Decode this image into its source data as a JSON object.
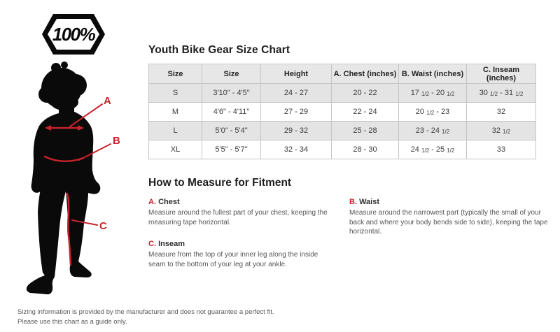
{
  "logo": {
    "text": "100%"
  },
  "chart": {
    "title": "Youth Bike Gear Size Chart",
    "columns": [
      "Size",
      "Size",
      "Height",
      "A. Chest (inches)",
      "B. Waist (inches)",
      "C. Inseam (inches)"
    ],
    "rows": [
      [
        "S",
        "3'10\" - 4'5\"",
        "24 - 27",
        "20 - 22",
        "17 1/2 - 20 1/2",
        "30 1/2 - 31 1/2"
      ],
      [
        "M",
        "4'6\" - 4'11\"",
        "27 - 29",
        "22 - 24",
        "20 1/2 - 23",
        "32"
      ],
      [
        "L",
        "5'0\" - 5'4\"",
        "29 - 32",
        "25 - 28",
        "23 - 24 1/2",
        "32 1/2"
      ],
      [
        "XL",
        "5'5\" - 5'7\"",
        "32 - 34",
        "28 - 30",
        "24 1/2 - 25 1/2",
        "33"
      ]
    ]
  },
  "measure": {
    "title": "How to Measure for Fitment",
    "items": [
      {
        "letter": "A.",
        "name": "Chest",
        "text": "Measure around the fullest part of your chest, keeping the measuring tape horizontal."
      },
      {
        "letter": "B.",
        "name": "Waist",
        "text": "Measure around the narrowest part (typically the small of your back and where your body bends side to side), keeping the tape horizontal."
      },
      {
        "letter": "C.",
        "name": "Inseam",
        "text": "Measure from the top of your inner leg along the inside seam to the bottom of your leg at your ankle."
      }
    ]
  },
  "diagram": {
    "labels": [
      "A",
      "B",
      "C"
    ]
  },
  "footer": {
    "line1": "Sizing information is provided by the manufacturer and does not guarantee a perfect fit.",
    "line2": "Please use this chart as a guide only."
  },
  "colors": {
    "accent_red": "#c8232b",
    "silhouette": "#0a0a0a",
    "table_shade": "#e4e4e4",
    "table_border": "#c5c5c5"
  }
}
